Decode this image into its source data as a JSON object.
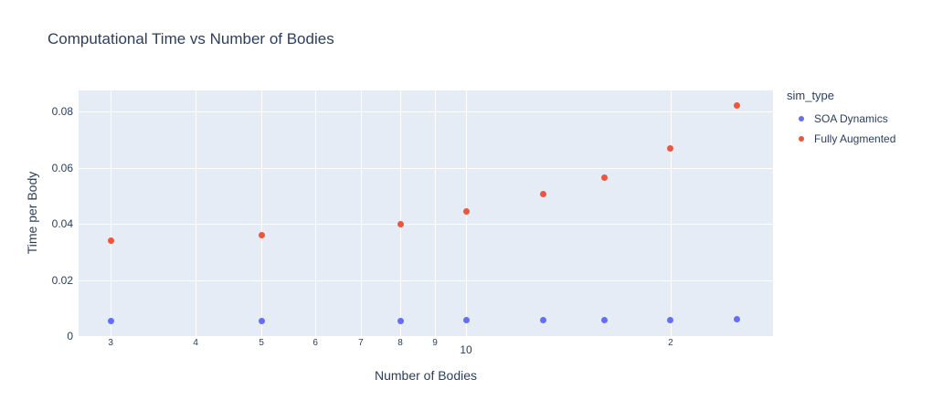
{
  "title": "Computational Time vs Number of Bodies",
  "colors": {
    "text": "#2a3f5f",
    "plot_background": "#E5ECF6",
    "gridline": "#ffffff",
    "series_blue": "#636EFA",
    "series_red": "#EF553B"
  },
  "legend": {
    "title": "sim_type"
  },
  "chart_data": {
    "type": "scatter",
    "title": "Computational Time vs Number of Bodies",
    "xlabel": "Number of Bodies",
    "ylabel": "Time per Body",
    "x_scale": "log",
    "y_scale": "linear",
    "xlim": [
      2.69,
      28.3
    ],
    "ylim": [
      0,
      0.0875
    ],
    "grid": true,
    "legend_position": "right",
    "legend_title": "sim_type",
    "x": [
      3,
      5,
      8,
      10,
      13,
      16,
      20,
      25
    ],
    "series": [
      {
        "name": "SOA Dynamics",
        "color": "#636EFA",
        "values": [
          0.0054,
          0.0054,
          0.0055,
          0.0056,
          0.0057,
          0.0058,
          0.0058,
          0.0059
        ]
      },
      {
        "name": "Fully Augmented",
        "color": "#EF553B",
        "values": [
          0.034,
          0.036,
          0.04,
          0.0445,
          0.0505,
          0.0565,
          0.067,
          0.082
        ]
      }
    ],
    "x_ticks": [
      {
        "v": 3,
        "label": "3",
        "major": false
      },
      {
        "v": 4,
        "label": "4",
        "major": false
      },
      {
        "v": 5,
        "label": "5",
        "major": false
      },
      {
        "v": 6,
        "label": "6",
        "major": false
      },
      {
        "v": 7,
        "label": "7",
        "major": false
      },
      {
        "v": 8,
        "label": "8",
        "major": false
      },
      {
        "v": 9,
        "label": "9",
        "major": false
      },
      {
        "v": 10,
        "label": "10",
        "major": true
      },
      {
        "v": 20,
        "label": "2",
        "major": false
      }
    ],
    "y_ticks": [
      {
        "v": 0,
        "label": "0"
      },
      {
        "v": 0.02,
        "label": "0.02"
      },
      {
        "v": 0.04,
        "label": "0.04"
      },
      {
        "v": 0.06,
        "label": "0.06"
      },
      {
        "v": 0.08,
        "label": "0.08"
      }
    ]
  }
}
